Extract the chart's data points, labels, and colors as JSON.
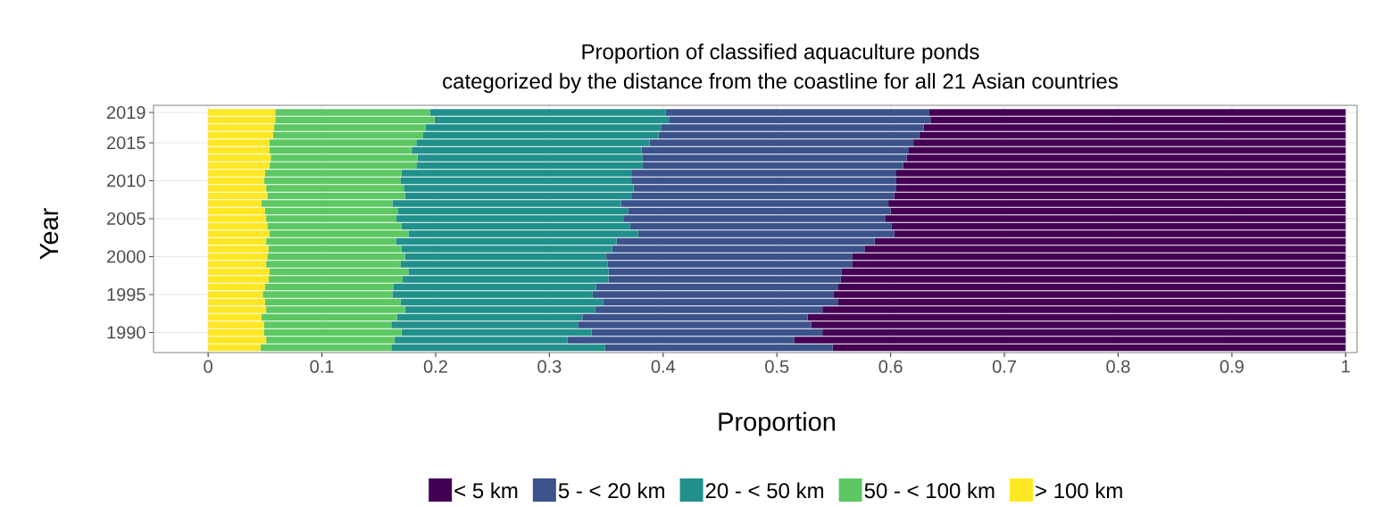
{
  "chart_data": {
    "type": "bar",
    "orientation": "horizontal",
    "stacked": true,
    "title": "Proportion of classified aquaculture ponds",
    "subtitle": "categorized by the distance from the coastline for all 21 Asian countries",
    "xlabel": "Proportion",
    "ylabel": "Year",
    "categories": [
      "2019",
      null,
      null,
      null,
      "2015",
      null,
      null,
      null,
      null,
      "2010",
      null,
      null,
      null,
      null,
      "2005",
      null,
      null,
      null,
      null,
      "2000",
      null,
      null,
      null,
      null,
      "1995",
      null,
      null,
      null,
      null,
      "1990",
      null,
      null
    ],
    "series": [
      {
        "name": "> 100 km",
        "color": "#fde725",
        "values": [
          0.059,
          0.059,
          0.058,
          0.057,
          0.054,
          0.054,
          0.055,
          0.054,
          0.05,
          0.049,
          0.051,
          0.052,
          0.047,
          0.05,
          0.051,
          0.052,
          0.054,
          0.051,
          0.053,
          0.052,
          0.051,
          0.054,
          0.053,
          0.05,
          0.048,
          0.05,
          0.051,
          0.047,
          0.049,
          0.049,
          0.051,
          0.046
        ]
      },
      {
        "name": "50 - < 100 km",
        "color": "#5dc863",
        "values": [
          0.136,
          0.14,
          0.133,
          0.132,
          0.129,
          0.125,
          0.129,
          0.129,
          0.12,
          0.12,
          0.121,
          0.121,
          0.115,
          0.117,
          0.114,
          0.118,
          0.122,
          0.114,
          0.117,
          0.121,
          0.118,
          0.122,
          0.118,
          0.113,
          0.114,
          0.119,
          0.122,
          0.119,
          0.112,
          0.121,
          0.113,
          0.115
        ]
      },
      {
        "name": "20 - < 50 km",
        "color": "#21908c",
        "values": [
          0.207,
          0.206,
          0.207,
          0.207,
          0.205,
          0.202,
          0.198,
          0.199,
          0.202,
          0.203,
          0.202,
          0.199,
          0.201,
          0.202,
          0.2,
          0.201,
          0.202,
          0.194,
          0.185,
          0.177,
          0.182,
          0.176,
          0.181,
          0.178,
          0.176,
          0.178,
          0.167,
          0.163,
          0.164,
          0.167,
          0.152,
          0.188
        ]
      },
      {
        "name": "5 - < 20 km",
        "color": "#3b528b",
        "values": [
          0.232,
          0.23,
          0.231,
          0.229,
          0.232,
          0.235,
          0.232,
          0.229,
          0.233,
          0.233,
          0.231,
          0.231,
          0.235,
          0.231,
          0.23,
          0.23,
          0.225,
          0.227,
          0.222,
          0.216,
          0.215,
          0.205,
          0.204,
          0.213,
          0.212,
          0.207,
          0.2,
          0.198,
          0.205,
          0.203,
          0.199,
          0.2
        ]
      },
      {
        "name": "< 5 km",
        "color": "#440154",
        "values": [
          0.366,
          0.365,
          0.371,
          0.375,
          0.38,
          0.384,
          0.386,
          0.389,
          0.395,
          0.395,
          0.395,
          0.397,
          0.402,
          0.4,
          0.405,
          0.399,
          0.397,
          0.414,
          0.423,
          0.434,
          0.434,
          0.443,
          0.444,
          0.446,
          0.45,
          0.446,
          0.46,
          0.473,
          0.47,
          0.46,
          0.485,
          0.451
        ]
      }
    ],
    "xlim": [
      -0.048,
      1.01
    ],
    "xticks": [
      0,
      0.1,
      0.2,
      0.3,
      0.4,
      0.5,
      0.6,
      0.7,
      0.8,
      0.9,
      1
    ],
    "grid": true,
    "legend": "bottom"
  }
}
